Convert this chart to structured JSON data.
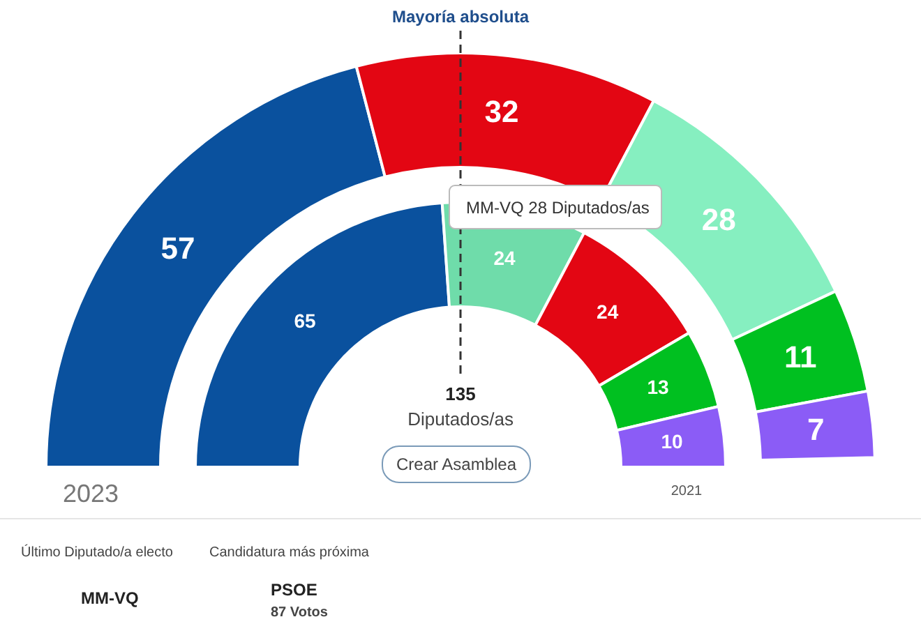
{
  "chart_data": {
    "type": "donut",
    "categories": [
      null,
      null,
      null,
      null,
      null
    ],
    "data_labels": true,
    "series": [
      {
        "name": "2023",
        "values": [
          57,
          32,
          28,
          11,
          7
        ],
        "colors": [
          "#0a519e",
          "#e30613",
          "#86efc0",
          "#00c020",
          "#8b5cf6"
        ]
      },
      {
        "name": "2021",
        "values": [
          65,
          24,
          24,
          13,
          10
        ],
        "colors": [
          "#0a519e",
          "#6fdcaa",
          "#e30613",
          "#00c020",
          "#8b5cf6"
        ]
      }
    ],
    "annotations": [
      "Mayoría absoluta",
      "135",
      "Diputados/as",
      "Crear Asamblea",
      "MM-VQ 28 Diputados/as",
      "Último Diputado/a electo",
      "Candidatura más próxima",
      "MM-VQ",
      "PSOE",
      "87 Votos"
    ]
  }
}
